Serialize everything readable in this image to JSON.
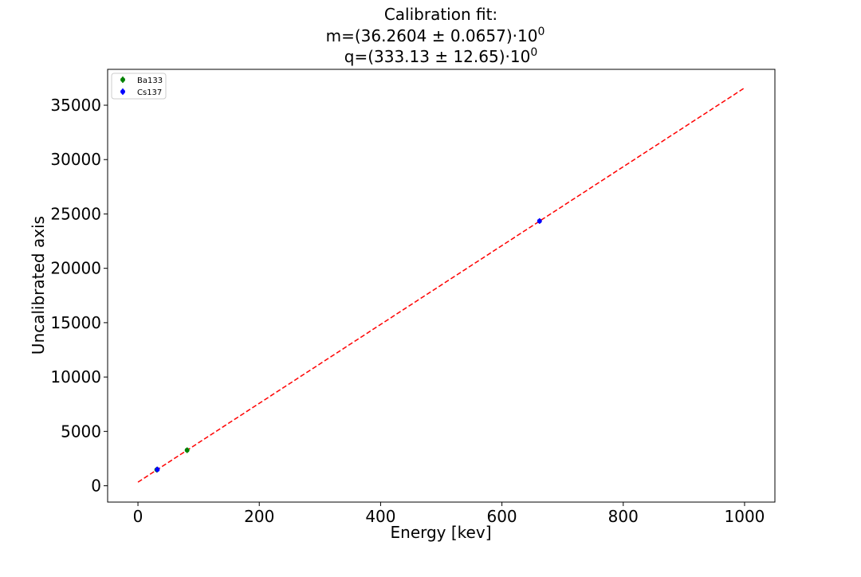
{
  "chart_data": {
    "type": "scatter",
    "title_lines": [
      "Calibration fit:",
      "m=(36.2604 ± 0.0657)·10",
      "q=(333.13 ± 12.65)·10"
    ],
    "title_superscripts": [
      "",
      "0",
      "0"
    ],
    "xlabel": "Energy [kev]",
    "ylabel": "Uncalibrated axis",
    "xlim": [
      -50,
      1050
    ],
    "ylim": [
      -1500,
      38300
    ],
    "xticks": [
      0,
      200,
      400,
      600,
      800,
      1000
    ],
    "yticks": [
      0,
      5000,
      10000,
      15000,
      20000,
      25000,
      30000,
      35000
    ],
    "grid": false,
    "legend_position": "top-left",
    "series": [
      {
        "name": "Ba133",
        "color": "#008000",
        "marker": "circle-with-errorbar",
        "points": [
          {
            "x": 31,
            "y": 1480
          },
          {
            "x": 81,
            "y": 3270
          }
        ]
      },
      {
        "name": "Cs137",
        "color": "#0000ff",
        "marker": "circle-with-errorbar",
        "points": [
          {
            "x": 32,
            "y": 1500
          },
          {
            "x": 662,
            "y": 24350
          }
        ]
      }
    ],
    "fit_line": {
      "slope": 36.2604,
      "intercept": 333.13,
      "x_range": [
        0,
        1000
      ],
      "color": "#ff0000",
      "style": "dashed"
    }
  }
}
